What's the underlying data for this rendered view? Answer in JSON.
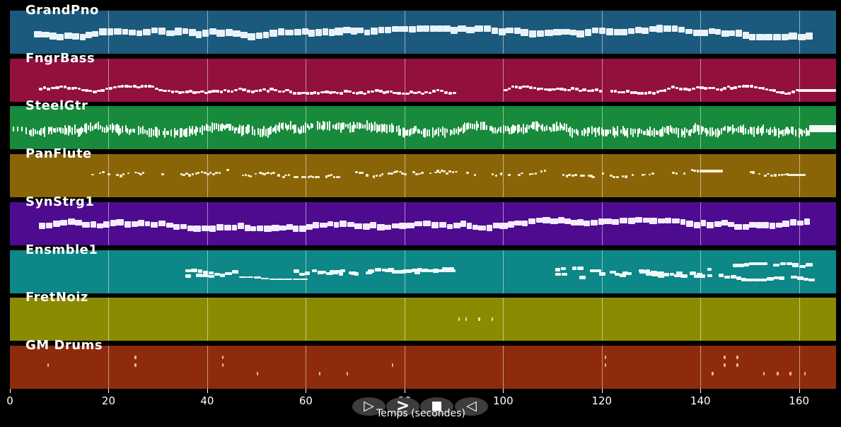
{
  "figure": {
    "background": "#000000",
    "note_default_color": "#ffffff"
  },
  "axis": {
    "label": "Temps (secondes)",
    "tick_values": [
      0,
      20,
      40,
      60,
      80,
      100,
      120,
      140,
      160
    ],
    "tick_color": "#ffffff"
  },
  "controls": {
    "buttons": [
      {
        "name": "play",
        "glyph": "▷"
      },
      {
        "name": "fast-forward",
        "glyph": ">"
      },
      {
        "name": "stop",
        "glyph": "■"
      },
      {
        "name": "rewind",
        "glyph": "◁"
      }
    ],
    "button_color": "#3d3d3d",
    "glyph_color": "#ffffff"
  },
  "chart_data": {
    "type": "midi-piano-roll",
    "title": "",
    "xlabel": "Temps (secondes)",
    "x_range_seconds": [
      0,
      167.5
    ],
    "x_ticks": [
      0,
      20,
      40,
      60,
      80,
      100,
      120,
      140,
      160
    ],
    "grid": "vertical-every-20s",
    "legend_position": "none",
    "tracks": [
      {
        "name": "GrandPno",
        "color": "#1c5a7d",
        "note_color": "#e9f3f7",
        "runs": [
          {
            "type": "blocks",
            "start": 4.9,
            "end": 161.9,
            "w": 10,
            "h": 9,
            "jitter": 3,
            "clamp": 6,
            "gap": 0.6,
            "dy": 1
          }
        ]
      },
      {
        "name": "FngrBass",
        "color": "#91103e",
        "note_color": "#fdeef2",
        "runs": [
          {
            "type": "blocks",
            "start": 5.9,
            "end": 89.8,
            "w": 5,
            "h": 3.5,
            "jitter": 2.5,
            "clamp": 5,
            "gap": 0.5,
            "dy": 14
          },
          {
            "type": "blocks",
            "start": 100.1,
            "end": 119.9,
            "w": 5,
            "h": 3.5,
            "jitter": 2.5,
            "clamp": 5,
            "gap": 0.5,
            "dy": 14
          },
          {
            "type": "blocks",
            "start": 121.7,
            "end": 159.7,
            "w": 5,
            "h": 3.5,
            "jitter": 2.5,
            "clamp": 5,
            "gap": 0.5,
            "dy": 14
          },
          {
            "type": "bar",
            "start": 159.7,
            "end": 167.5,
            "h": 3.5,
            "dy": 15
          }
        ]
      },
      {
        "name": "SteelGtr",
        "color": "#178a3b",
        "note_color": "#f2fbf4",
        "runs": [
          {
            "type": "ticks",
            "times": [
              0.6,
              1.4,
              2.3
            ],
            "w": 2,
            "h": 7,
            "dy": 2
          },
          {
            "type": "marks",
            "start": 3.2,
            "end": 162,
            "w": 2,
            "hmin": 5,
            "hmax": 15,
            "step": 0.38,
            "skip": 0.05,
            "jitter": 3,
            "clamp": 5,
            "dy": 2
          },
          {
            "type": "bar",
            "start": 162,
            "end": 167.5,
            "h": 10,
            "dy": 1
          }
        ]
      },
      {
        "name": "PanFlute",
        "color": "#8a6508",
        "note_color": "#f5eed6",
        "runs": [
          {
            "type": "marks",
            "start": 16.5,
            "end": 31,
            "w": 3.5,
            "hmin": 2.5,
            "hmax": 3.5,
            "step": 0.55,
            "skip": 0.3,
            "jitter": 2.5,
            "clamp": 5,
            "dy": -3
          },
          {
            "type": "marks",
            "start": 34.5,
            "end": 45,
            "w": 3.5,
            "hmin": 2.5,
            "hmax": 3.5,
            "step": 0.6,
            "skip": 0.35,
            "jitter": 2.5,
            "clamp": 5,
            "dy": -3
          },
          {
            "type": "marks",
            "start": 47,
            "end": 67,
            "w": 3.5,
            "hmin": 2.5,
            "hmax": 3.5,
            "step": 0.55,
            "skip": 0.3,
            "jitter": 2.5,
            "clamp": 5,
            "dy": -3
          },
          {
            "type": "marks",
            "start": 70,
            "end": 90.5,
            "w": 3.5,
            "hmin": 2.5,
            "hmax": 3.5,
            "step": 0.55,
            "skip": 0.3,
            "jitter": 2.5,
            "clamp": 5,
            "dy": -3
          },
          {
            "type": "marks",
            "start": 92.5,
            "end": 99.5,
            "w": 3.5,
            "hmin": 2.5,
            "hmax": 3.5,
            "step": 0.8,
            "skip": 0.5,
            "jitter": 3,
            "clamp": 6,
            "dy": -5
          },
          {
            "type": "marks",
            "start": 101,
            "end": 110,
            "w": 3.5,
            "hmin": 2.5,
            "hmax": 3.5,
            "step": 0.6,
            "skip": 0.35,
            "jitter": 2.5,
            "clamp": 5,
            "dy": -3
          },
          {
            "type": "marks",
            "start": 112,
            "end": 118.5,
            "w": 3.5,
            "hmin": 2.5,
            "hmax": 3.5,
            "step": 0.6,
            "skip": 0.35,
            "jitter": 2.5,
            "clamp": 5,
            "dy": -3
          },
          {
            "type": "marks",
            "start": 120,
            "end": 131,
            "w": 3.5,
            "hmin": 2.5,
            "hmax": 3.5,
            "step": 0.55,
            "skip": 0.3,
            "jitter": 2.5,
            "clamp": 5,
            "dy": -3
          },
          {
            "type": "marks",
            "start": 133.5,
            "end": 139.8,
            "w": 3.5,
            "hmin": 2.5,
            "hmax": 3.5,
            "step": 0.6,
            "skip": 0.3,
            "jitter": 2.5,
            "clamp": 5,
            "dy": -3
          },
          {
            "type": "bar",
            "start": 139.8,
            "end": 144.6,
            "h": 4,
            "dy": -7
          },
          {
            "type": "marks",
            "start": 150,
            "end": 157.6,
            "w": 3.5,
            "hmin": 2.5,
            "hmax": 3.5,
            "step": 0.6,
            "skip": 0.3,
            "jitter": 2.5,
            "clamp": 5,
            "dy": -3
          },
          {
            "type": "bar",
            "start": 157.6,
            "end": 161.3,
            "h": 3.5,
            "dy": -1
          }
        ]
      },
      {
        "name": "SynStrg1",
        "color": "#4e0b90",
        "note_color": "#f3ecfb",
        "runs": [
          {
            "type": "blocks",
            "start": 5.9,
            "end": 161.9,
            "w": 9.5,
            "h": 8,
            "jitter": 3,
            "clamp": 6,
            "gap": 0.6,
            "dy": 1
          }
        ]
      },
      {
        "name": "Ensmble1",
        "color": "#0d8787",
        "note_color": "#f0fafa",
        "runs": [
          {
            "type": "blocks",
            "start": 35.6,
            "end": 45.3,
            "w": 8,
            "h": 4.5,
            "jitter": 3,
            "clamp": 8,
            "gap": 0.4,
            "dy": -2,
            "voices": 2,
            "skip": 0.2
          },
          {
            "type": "blocks",
            "start": 46.5,
            "end": 59.7,
            "w": 10,
            "h": 2.5,
            "jitter": 1.5,
            "clamp": 4,
            "gap": 0.3,
            "dy": 7
          },
          {
            "type": "blocks",
            "start": 57.5,
            "end": 89.8,
            "w": 8,
            "h": 4.5,
            "jitter": 3,
            "clamp": 8,
            "gap": 0.4,
            "dy": 0,
            "voices": 2,
            "skip": 0.25
          },
          {
            "type": "blocks",
            "start": 110.5,
            "end": 119.8,
            "w": 8,
            "h": 4.5,
            "jitter": 3,
            "clamp": 6,
            "gap": 0.4,
            "dy": -2,
            "voices": 2,
            "skip": 0.3
          },
          {
            "type": "blocks",
            "start": 121.6,
            "end": 140.6,
            "w": 8,
            "h": 4.5,
            "jitter": 3,
            "clamp": 8,
            "gap": 0.4,
            "dy": 0,
            "voices": 2,
            "skip": 0.25
          },
          {
            "type": "blocks",
            "start": 141.4,
            "end": 162.1,
            "w": 8,
            "h": 4.5,
            "jitter": 3,
            "clamp": 8,
            "gap": 0.4,
            "dy": -3,
            "voices": 2,
            "skip": 0.25
          }
        ]
      },
      {
        "name": "FretNoiz",
        "color": "#8b8b02",
        "note_color": "#f0e9a6",
        "runs": [
          {
            "type": "ticks",
            "times": [
              90.9,
              92.3,
              95.0,
              97.6
            ],
            "w": 2.5,
            "h": 5,
            "dy": 0
          }
        ]
      },
      {
        "name": "GM Drums",
        "color": "#8e2b0d",
        "note_color": "#f0b49e",
        "runs": [
          {
            "type": "hits",
            "events": [
              {
                "t": 7.6,
                "lanes": [
                  "mid"
                ]
              },
              {
                "t": 25.3,
                "lanes": [
                  "high",
                  "mid"
                ]
              },
              {
                "t": 43.0,
                "lanes": [
                  "high",
                  "mid"
                ]
              },
              {
                "t": 50.0,
                "lanes": [
                  "low"
                ]
              },
              {
                "t": 62.6,
                "lanes": [
                  "low"
                ]
              },
              {
                "t": 68.2,
                "lanes": [
                  "low"
                ]
              },
              {
                "t": 77.4,
                "lanes": [
                  "mid"
                ]
              },
              {
                "t": 120.6,
                "lanes": [
                  "high",
                  "mid"
                ]
              },
              {
                "t": 142.3,
                "lanes": [
                  "low"
                ]
              },
              {
                "t": 144.7,
                "lanes": [
                  "high",
                  "mid"
                ]
              },
              {
                "t": 147.3,
                "lanes": [
                  "high",
                  "mid"
                ]
              },
              {
                "t": 152.7,
                "lanes": [
                  "low"
                ]
              },
              {
                "t": 155.5,
                "lanes": [
                  "low"
                ]
              },
              {
                "t": 158.1,
                "lanes": [
                  "low"
                ]
              },
              {
                "t": 161.0,
                "lanes": [
                  "low"
                ]
              }
            ]
          }
        ]
      }
    ]
  }
}
